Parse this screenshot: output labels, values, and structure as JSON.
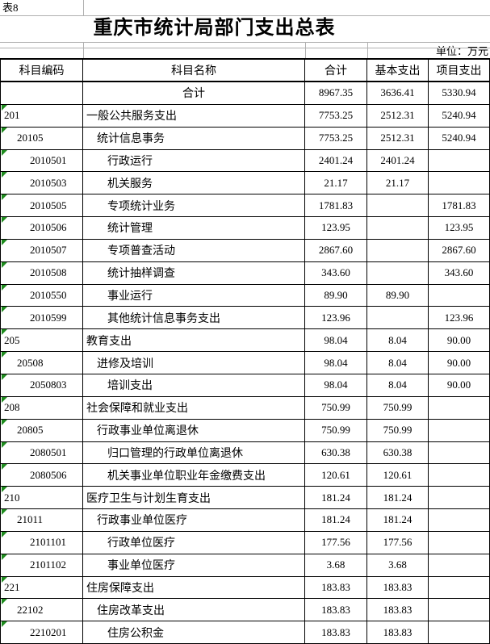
{
  "sheet_label": "表8",
  "title": "重庆市统计局部门支出总表",
  "unit_note": "单位：万元",
  "columns": [
    "科目编码",
    "科目名称",
    "合计",
    "基本支出",
    "项目支出"
  ],
  "total_row": {
    "code": "",
    "name": "合计",
    "total": "8967.35",
    "basic": "3636.41",
    "project": "5330.94"
  },
  "rows": [
    {
      "code": "201",
      "level": 0,
      "name": "一般公共服务支出",
      "total": "7753.25",
      "basic": "2512.31",
      "project": "5240.94"
    },
    {
      "code": "20105",
      "level": 1,
      "name": "统计信息事务",
      "total": "7753.25",
      "basic": "2512.31",
      "project": "5240.94"
    },
    {
      "code": "2010501",
      "level": 2,
      "name": "行政运行",
      "total": "2401.24",
      "basic": "2401.24",
      "project": ""
    },
    {
      "code": "2010503",
      "level": 2,
      "name": "机关服务",
      "total": "21.17",
      "basic": "21.17",
      "project": ""
    },
    {
      "code": "2010505",
      "level": 2,
      "name": "专项统计业务",
      "total": "1781.83",
      "basic": "",
      "project": "1781.83"
    },
    {
      "code": "2010506",
      "level": 2,
      "name": "统计管理",
      "total": "123.95",
      "basic": "",
      "project": "123.95"
    },
    {
      "code": "2010507",
      "level": 2,
      "name": "专项普查活动",
      "total": "2867.60",
      "basic": "",
      "project": "2867.60"
    },
    {
      "code": "2010508",
      "level": 2,
      "name": "统计抽样调查",
      "total": "343.60",
      "basic": "",
      "project": "343.60"
    },
    {
      "code": "2010550",
      "level": 2,
      "name": "事业运行",
      "total": "89.90",
      "basic": "89.90",
      "project": ""
    },
    {
      "code": "2010599",
      "level": 2,
      "name": "其他统计信息事务支出",
      "total": "123.96",
      "basic": "",
      "project": "123.96"
    },
    {
      "code": "205",
      "level": 0,
      "name": "教育支出",
      "total": "98.04",
      "basic": "8.04",
      "project": "90.00"
    },
    {
      "code": "20508",
      "level": 1,
      "name": "进修及培训",
      "total": "98.04",
      "basic": "8.04",
      "project": "90.00"
    },
    {
      "code": "2050803",
      "level": 2,
      "name": "培训支出",
      "total": "98.04",
      "basic": "8.04",
      "project": "90.00"
    },
    {
      "code": "208",
      "level": 0,
      "name": "社会保障和就业支出",
      "total": "750.99",
      "basic": "750.99",
      "project": ""
    },
    {
      "code": "20805",
      "level": 1,
      "name": "行政事业单位离退休",
      "total": "750.99",
      "basic": "750.99",
      "project": ""
    },
    {
      "code": "2080501",
      "level": 2,
      "name": "归口管理的行政单位离退休",
      "total": "630.38",
      "basic": "630.38",
      "project": ""
    },
    {
      "code": "2080506",
      "level": 2,
      "name": "机关事业单位职业年金缴费支出",
      "total": "120.61",
      "basic": "120.61",
      "project": ""
    },
    {
      "code": "210",
      "level": 0,
      "name": "医疗卫生与计划生育支出",
      "total": "181.24",
      "basic": "181.24",
      "project": ""
    },
    {
      "code": "21011",
      "level": 1,
      "name": "行政事业单位医疗",
      "total": "181.24",
      "basic": "181.24",
      "project": ""
    },
    {
      "code": "2101101",
      "level": 2,
      "name": "行政单位医疗",
      "total": "177.56",
      "basic": "177.56",
      "project": ""
    },
    {
      "code": "2101102",
      "level": 2,
      "name": "事业单位医疗",
      "total": "3.68",
      "basic": "3.68",
      "project": ""
    },
    {
      "code": "221",
      "level": 0,
      "name": "住房保障支出",
      "total": "183.83",
      "basic": "183.83",
      "project": ""
    },
    {
      "code": "22102",
      "level": 1,
      "name": "住房改革支出",
      "total": "183.83",
      "basic": "183.83",
      "project": ""
    },
    {
      "code": "2210201",
      "level": 2,
      "name": "住房公积金",
      "total": "183.83",
      "basic": "183.83",
      "project": ""
    }
  ],
  "colors": {
    "cell_background": "#ffffff",
    "border": "#000000",
    "gridline": "#b0b0b0",
    "error_triangle_green": "#1e8c1e"
  }
}
